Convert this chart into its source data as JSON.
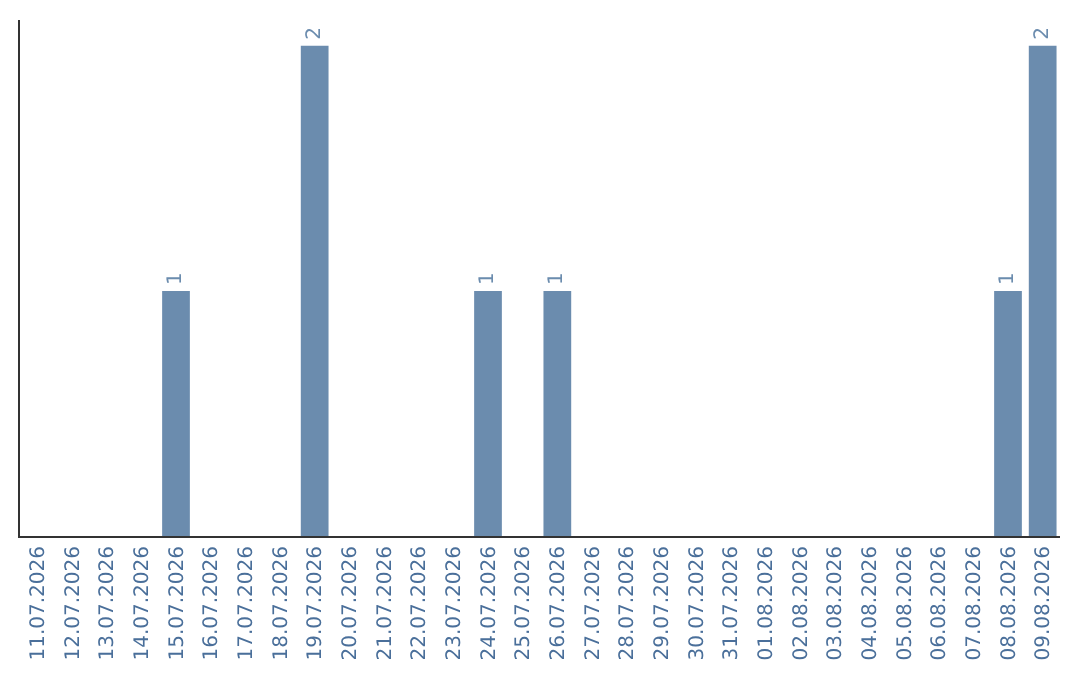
{
  "chart_data": {
    "type": "bar",
    "categories": [
      "11.07.2026",
      "12.07.2026",
      "13.07.2026",
      "14.07.2026",
      "15.07.2026",
      "16.07.2026",
      "17.07.2026",
      "18.07.2026",
      "19.07.2026",
      "20.07.2026",
      "21.07.2026",
      "22.07.2026",
      "23.07.2026",
      "24.07.2026",
      "25.07.2026",
      "26.07.2026",
      "27.07.2026",
      "28.07.2026",
      "29.07.2026",
      "30.07.2026",
      "31.07.2026",
      "01.08.2026",
      "02.08.2026",
      "03.08.2026",
      "04.08.2026",
      "05.08.2026",
      "06.08.2026",
      "07.08.2026",
      "08.08.2026",
      "09.08.2026"
    ],
    "values": [
      0,
      0,
      0,
      0,
      1,
      0,
      0,
      0,
      2,
      0,
      0,
      0,
      0,
      1,
      0,
      1,
      0,
      0,
      0,
      0,
      0,
      0,
      0,
      0,
      0,
      0,
      0,
      0,
      1,
      2
    ],
    "value_labels": [
      null,
      null,
      null,
      null,
      "1",
      null,
      null,
      null,
      "2",
      null,
      null,
      null,
      null,
      "1",
      null,
      "1",
      null,
      null,
      null,
      null,
      null,
      null,
      null,
      null,
      null,
      null,
      null,
      null,
      "1",
      "2"
    ],
    "color": "#6b8cae"
  }
}
